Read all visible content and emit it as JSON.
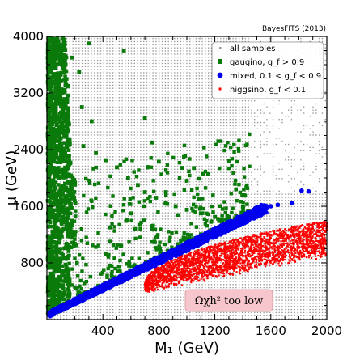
{
  "chart_data": {
    "type": "scatter",
    "credit": "BayesFITS (2013)",
    "xlabel": "M₁ (GeV)",
    "ylabel": "μ (GeV)",
    "xlim": [
      0,
      2000
    ],
    "ylim": [
      0,
      4000
    ],
    "x_ticks": [
      400,
      800,
      1200,
      1600,
      2000
    ],
    "y_ticks": [
      800,
      1600,
      2400,
      3200,
      4000
    ],
    "legend_position": "top-right",
    "annotation": "Ωχh²  too low",
    "series": [
      {
        "name": "all samples",
        "color": "#9a9a9a",
        "marker": "dot",
        "region": "fills most of the plane; sparse for M₁ > 1500 GeV and μ > 1800 GeV"
      },
      {
        "name": "gaugino, g_f > 0.9",
        "color": "#0a7a0a",
        "marker": "square",
        "points": [
          [
            40,
            3950
          ],
          [
            100,
            3850
          ],
          [
            180,
            3700
          ],
          [
            230,
            3500
          ],
          [
            300,
            3900
          ],
          [
            150,
            3300
          ],
          [
            250,
            3000
          ],
          [
            320,
            2800
          ],
          [
            140,
            2600
          ],
          [
            260,
            2450
          ],
          [
            350,
            2350
          ],
          [
            420,
            2250
          ],
          [
            500,
            2150
          ],
          [
            580,
            2000
          ],
          [
            650,
            1900
          ],
          [
            700,
            1800
          ],
          [
            780,
            1720
          ],
          [
            850,
            1650
          ],
          [
            920,
            1600
          ],
          [
            1000,
            1550
          ],
          [
            1100,
            1500
          ],
          [
            1200,
            1450
          ],
          [
            1300,
            1450
          ],
          [
            1400,
            1480
          ],
          [
            550,
            3800
          ],
          [
            700,
            2850
          ],
          [
            750,
            2500
          ],
          [
            800,
            2230
          ],
          [
            1000,
            1960
          ],
          [
            1050,
            2140
          ],
          [
            850,
            1800
          ],
          [
            600,
            1500
          ],
          [
            450,
            1300
          ]
        ]
      },
      {
        "name": "mixed, 0.1 < g_f < 0.9",
        "color": "#0000ee",
        "marker": "circle",
        "points": [
          [
            20,
            80
          ],
          [
            100,
            180
          ],
          [
            200,
            280
          ],
          [
            300,
            380
          ],
          [
            400,
            480
          ],
          [
            500,
            580
          ],
          [
            600,
            660
          ],
          [
            700,
            760
          ],
          [
            800,
            850
          ],
          [
            900,
            940
          ],
          [
            1000,
            1040
          ],
          [
            1100,
            1130
          ],
          [
            1200,
            1220
          ],
          [
            1300,
            1300
          ],
          [
            1400,
            1380
          ],
          [
            1450,
            1460
          ],
          [
            1500,
            1520
          ],
          [
            1600,
            1600
          ],
          [
            1650,
            1620
          ],
          [
            1750,
            1650
          ],
          [
            1820,
            1820
          ],
          [
            1870,
            1810
          ]
        ]
      },
      {
        "name": "higgsino, g_f < 0.1",
        "color": "#ff0000",
        "marker": "dot",
        "points": [
          [
            700,
            500
          ],
          [
            800,
            600
          ],
          [
            900,
            700
          ],
          [
            1000,
            800
          ],
          [
            1100,
            900
          ],
          [
            1200,
            950
          ],
          [
            1300,
            1000
          ],
          [
            1400,
            1050
          ],
          [
            1500,
            1100
          ],
          [
            1600,
            1150
          ],
          [
            1700,
            1200
          ],
          [
            1800,
            1250
          ],
          [
            1900,
            1300
          ],
          [
            2000,
            1330
          ]
        ]
      }
    ]
  }
}
